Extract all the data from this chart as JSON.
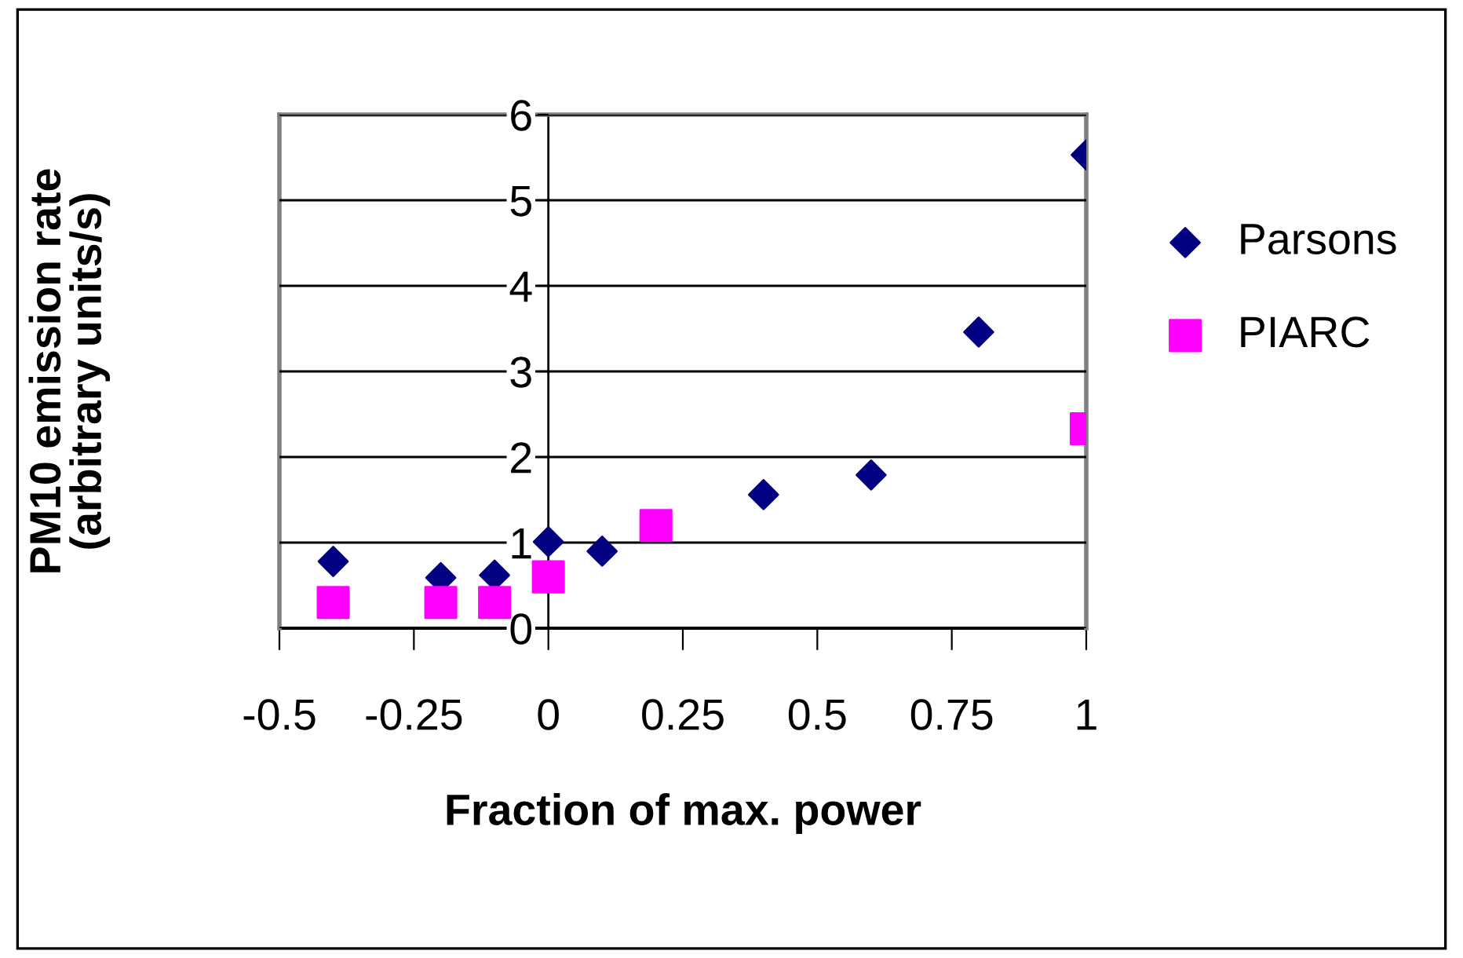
{
  "chart_data": {
    "type": "scatter",
    "xlabel": "Fraction of max. power",
    "ylabel": "PM10 emission rate\n(arbitrary units/s)",
    "xlim": [
      -0.5,
      1
    ],
    "xticks": [
      -0.5,
      -0.25,
      0,
      0.25,
      0.5,
      0.75,
      1
    ],
    "ylim": [
      0,
      6
    ],
    "yticks": [
      0,
      1,
      2,
      3,
      4,
      5,
      6
    ],
    "grid": "y",
    "legend": "right",
    "series": [
      {
        "name": "Parsons",
        "color": "#000080",
        "marker": "diamond",
        "x": [
          -0.4,
          -0.2,
          -0.1,
          0,
          0.1,
          0.4,
          0.6,
          0.8,
          1.0
        ],
        "values": [
          0.78,
          0.59,
          0.62,
          1.01,
          0.9,
          1.56,
          1.79,
          3.46,
          5.53
        ]
      },
      {
        "name": "PIARC",
        "color": "#ff00ff",
        "marker": "square",
        "x": [
          -0.4,
          -0.2,
          -0.1,
          0,
          0.2,
          1.0
        ],
        "values": [
          0.3,
          0.3,
          0.3,
          0.6,
          1.2,
          2.33
        ]
      }
    ]
  }
}
